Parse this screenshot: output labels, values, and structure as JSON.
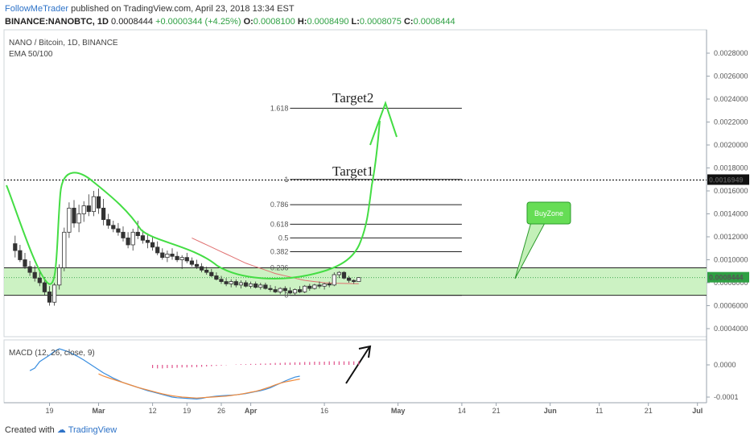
{
  "header": {
    "author": "FollowMeTrader",
    "published": "published on TradingView.com, April 23, 2018 13:34 EST"
  },
  "ohlc_line": {
    "symbol": "BINANCE:NANOBTC, 1D",
    "last": "0.0008444",
    "change": "+0.0000344 (+4.25%)",
    "o_label": "O:",
    "o": "0.0008100",
    "h_label": "H:",
    "h": "0.0008490",
    "l_label": "L:",
    "l": "0.0008075",
    "c_label": "C:",
    "c": "0.0008444"
  },
  "legend": {
    "title": "NANO / Bitcoin, 1D, BINANCE",
    "ema": "EMA 50/100",
    "macd": "MACD (12, 26, close, 9)"
  },
  "annotations": {
    "target1": "Target1",
    "target2": "Target2",
    "buyzone": "BuyZone"
  },
  "footer": {
    "created_with": "Created with",
    "brand": "TradingView"
  },
  "colors": {
    "up": "#2ea043",
    "down": "#e04848",
    "zone": "#c3f0b8",
    "drawing": "#44dd44",
    "ema": "#e07070",
    "macd": "#3b8fe0",
    "signal": "#f08a3c",
    "hist": "#e0508a",
    "accent": "#2e73c8"
  },
  "chart_data": {
    "type": "candlestick",
    "price_axis": {
      "ticks": [
        0.0004,
        0.0006,
        0.0008,
        0.001,
        0.0012,
        0.0014,
        0.0016,
        0.0018,
        0.002,
        0.0022,
        0.0024,
        0.0026,
        0.0028
      ],
      "tick_labels": [
        "0.0004000",
        "0.0006000",
        "0.0008000",
        "0.0010000",
        "0.0012000",
        "0.0014000",
        "0.0016000",
        "0.0018000",
        "0.0020000",
        "0.0022000",
        "0.0024000",
        "0.0026000",
        "0.0028000"
      ],
      "ylim": [
        0.00028,
        0.00292
      ],
      "current_price_label": "0.0008444",
      "level_label": "0.0016949",
      "level_value": 0.0016949
    },
    "time_axis": {
      "labels": [
        "19",
        "Mar",
        "12",
        "19",
        "26",
        "Apr",
        "16",
        "May",
        "14",
        "21",
        "Jun",
        "11",
        "21",
        "Jul"
      ],
      "dates": [
        "2018-02-19",
        "2018-03-01",
        "2018-03-12",
        "2018-03-19",
        "2018-03-26",
        "2018-04-01",
        "2018-04-16",
        "2018-05-01",
        "2018-05-14",
        "2018-05-21",
        "2018-06-01",
        "2018-06-11",
        "2018-06-21",
        "2018-07-01"
      ]
    },
    "candles": [
      {
        "date": "2018-02-12",
        "o": 0.00114,
        "h": 0.00121,
        "l": 0.00102,
        "c": 0.00108
      },
      {
        "date": "2018-02-13",
        "o": 0.00108,
        "h": 0.00113,
        "l": 0.00098,
        "c": 0.001
      },
      {
        "date": "2018-02-14",
        "o": 0.001,
        "h": 0.00106,
        "l": 0.00092,
        "c": 0.00094
      },
      {
        "date": "2018-02-15",
        "o": 0.00094,
        "h": 0.00099,
        "l": 0.00086,
        "c": 0.00089
      },
      {
        "date": "2018-02-16",
        "o": 0.00089,
        "h": 0.00095,
        "l": 0.00081,
        "c": 0.00084
      },
      {
        "date": "2018-02-17",
        "o": 0.00084,
        "h": 0.0009,
        "l": 0.00077,
        "c": 0.0008
      },
      {
        "date": "2018-02-18",
        "o": 0.0008,
        "h": 0.00085,
        "l": 0.00069,
        "c": 0.00072
      },
      {
        "date": "2018-02-19",
        "o": 0.00072,
        "h": 0.00077,
        "l": 0.0006,
        "c": 0.00063
      },
      {
        "date": "2018-02-20",
        "o": 0.00063,
        "h": 0.0008,
        "l": 0.0006,
        "c": 0.00078
      },
      {
        "date": "2018-02-21",
        "o": 0.00078,
        "h": 0.00096,
        "l": 0.00074,
        "c": 0.00093
      },
      {
        "date": "2018-02-22",
        "o": 0.00093,
        "h": 0.00128,
        "l": 0.0009,
        "c": 0.00124
      },
      {
        "date": "2018-02-23",
        "o": 0.00124,
        "h": 0.0015,
        "l": 0.00119,
        "c": 0.00145
      },
      {
        "date": "2018-02-24",
        "o": 0.00145,
        "h": 0.00152,
        "l": 0.00128,
        "c": 0.00132
      },
      {
        "date": "2018-02-25",
        "o": 0.00132,
        "h": 0.00148,
        "l": 0.00124,
        "c": 0.0014
      },
      {
        "date": "2018-02-26",
        "o": 0.0014,
        "h": 0.00151,
        "l": 0.00133,
        "c": 0.00147
      },
      {
        "date": "2018-02-27",
        "o": 0.00147,
        "h": 0.00157,
        "l": 0.00138,
        "c": 0.00142
      },
      {
        "date": "2018-02-28",
        "o": 0.00142,
        "h": 0.0016,
        "l": 0.00138,
        "c": 0.00155
      },
      {
        "date": "2018-03-01",
        "o": 0.00155,
        "h": 0.00162,
        "l": 0.0014,
        "c": 0.00145
      },
      {
        "date": "2018-03-02",
        "o": 0.00145,
        "h": 0.00153,
        "l": 0.0013,
        "c": 0.00135
      },
      {
        "date": "2018-03-03",
        "o": 0.00135,
        "h": 0.0014,
        "l": 0.00127,
        "c": 0.0013
      },
      {
        "date": "2018-03-04",
        "o": 0.0013,
        "h": 0.00134,
        "l": 0.00124,
        "c": 0.00127
      },
      {
        "date": "2018-03-05",
        "o": 0.00127,
        "h": 0.00132,
        "l": 0.00121,
        "c": 0.00124
      },
      {
        "date": "2018-03-06",
        "o": 0.00124,
        "h": 0.00129,
        "l": 0.00116,
        "c": 0.00119
      },
      {
        "date": "2018-03-07",
        "o": 0.00119,
        "h": 0.00124,
        "l": 0.0011,
        "c": 0.00113
      },
      {
        "date": "2018-03-08",
        "o": 0.00113,
        "h": 0.00127,
        "l": 0.00108,
        "c": 0.00124
      },
      {
        "date": "2018-03-09",
        "o": 0.00124,
        "h": 0.00134,
        "l": 0.00118,
        "c": 0.00121
      },
      {
        "date": "2018-03-10",
        "o": 0.00121,
        "h": 0.00126,
        "l": 0.00114,
        "c": 0.00117
      },
      {
        "date": "2018-03-11",
        "o": 0.00117,
        "h": 0.00123,
        "l": 0.0011,
        "c": 0.00115
      },
      {
        "date": "2018-03-12",
        "o": 0.00115,
        "h": 0.0012,
        "l": 0.00108,
        "c": 0.00111
      },
      {
        "date": "2018-03-13",
        "o": 0.00111,
        "h": 0.00116,
        "l": 0.00104,
        "c": 0.00106
      },
      {
        "date": "2018-03-14",
        "o": 0.00106,
        "h": 0.0011,
        "l": 0.001,
        "c": 0.00102
      },
      {
        "date": "2018-03-15",
        "o": 0.00102,
        "h": 0.00108,
        "l": 0.00098,
        "c": 0.00105
      },
      {
        "date": "2018-03-16",
        "o": 0.00105,
        "h": 0.0011,
        "l": 0.001,
        "c": 0.00103
      },
      {
        "date": "2018-03-17",
        "o": 0.00103,
        "h": 0.00107,
        "l": 0.00098,
        "c": 0.001
      },
      {
        "date": "2018-03-18",
        "o": 0.001,
        "h": 0.00104,
        "l": 0.00092,
        "c": 0.00102
      },
      {
        "date": "2018-03-19",
        "o": 0.00102,
        "h": 0.00106,
        "l": 0.00097,
        "c": 0.00099
      },
      {
        "date": "2018-03-20",
        "o": 0.00099,
        "h": 0.00102,
        "l": 0.00094,
        "c": 0.00096
      },
      {
        "date": "2018-03-21",
        "o": 0.00096,
        "h": 0.001,
        "l": 0.00092,
        "c": 0.00094
      },
      {
        "date": "2018-03-22",
        "o": 0.00094,
        "h": 0.00097,
        "l": 0.00089,
        "c": 0.00091
      },
      {
        "date": "2018-03-23",
        "o": 0.00091,
        "h": 0.00094,
        "l": 0.00087,
        "c": 0.00089
      },
      {
        "date": "2018-03-24",
        "o": 0.00089,
        "h": 0.00092,
        "l": 0.00085,
        "c": 0.00086
      },
      {
        "date": "2018-03-25",
        "o": 0.00086,
        "h": 0.00089,
        "l": 0.00082,
        "c": 0.00083
      },
      {
        "date": "2018-03-26",
        "o": 0.00083,
        "h": 0.00086,
        "l": 0.00079,
        "c": 0.00081
      },
      {
        "date": "2018-03-27",
        "o": 0.00081,
        "h": 0.00084,
        "l": 0.00077,
        "c": 0.00079
      },
      {
        "date": "2018-03-28",
        "o": 0.00079,
        "h": 0.00083,
        "l": 0.00076,
        "c": 0.00081
      },
      {
        "date": "2018-03-29",
        "o": 0.00081,
        "h": 0.00083,
        "l": 0.00076,
        "c": 0.00078
      },
      {
        "date": "2018-03-30",
        "o": 0.00078,
        "h": 0.00082,
        "l": 0.00075,
        "c": 0.0008
      },
      {
        "date": "2018-03-31",
        "o": 0.0008,
        "h": 0.00082,
        "l": 0.00076,
        "c": 0.00077
      },
      {
        "date": "2018-04-01",
        "o": 0.00077,
        "h": 0.00081,
        "l": 0.00075,
        "c": 0.00079
      },
      {
        "date": "2018-04-02",
        "o": 0.00079,
        "h": 0.00081,
        "l": 0.00075,
        "c": 0.00076
      },
      {
        "date": "2018-04-03",
        "o": 0.00076,
        "h": 0.0008,
        "l": 0.00074,
        "c": 0.00078
      },
      {
        "date": "2018-04-04",
        "o": 0.00078,
        "h": 0.0008,
        "l": 0.00074,
        "c": 0.00075
      },
      {
        "date": "2018-04-05",
        "o": 0.00075,
        "h": 0.00078,
        "l": 0.00072,
        "c": 0.00074
      },
      {
        "date": "2018-04-06",
        "o": 0.00074,
        "h": 0.00077,
        "l": 0.00071,
        "c": 0.00072
      },
      {
        "date": "2018-04-07",
        "o": 0.00072,
        "h": 0.00076,
        "l": 0.0007,
        "c": 0.00075
      },
      {
        "date": "2018-04-08",
        "o": 0.00075,
        "h": 0.00077,
        "l": 0.00071,
        "c": 0.00073
      },
      {
        "date": "2018-04-09",
        "o": 0.00073,
        "h": 0.00076,
        "l": 0.0007,
        "c": 0.00071
      },
      {
        "date": "2018-04-10",
        "o": 0.00071,
        "h": 0.00075,
        "l": 0.00069,
        "c": 0.00074
      },
      {
        "date": "2018-04-11",
        "o": 0.00074,
        "h": 0.00077,
        "l": 0.00071,
        "c": 0.00072
      },
      {
        "date": "2018-04-12",
        "o": 0.00072,
        "h": 0.00078,
        "l": 0.00071,
        "c": 0.00077
      },
      {
        "date": "2018-04-13",
        "o": 0.00077,
        "h": 0.00079,
        "l": 0.00073,
        "c": 0.00075
      },
      {
        "date": "2018-04-14",
        "o": 0.00075,
        "h": 0.00079,
        "l": 0.00074,
        "c": 0.00078
      },
      {
        "date": "2018-04-15",
        "o": 0.00078,
        "h": 0.00081,
        "l": 0.00075,
        "c": 0.00077
      },
      {
        "date": "2018-04-16",
        "o": 0.00077,
        "h": 0.0008,
        "l": 0.00074,
        "c": 0.00079
      },
      {
        "date": "2018-04-17",
        "o": 0.00079,
        "h": 0.00081,
        "l": 0.00076,
        "c": 0.00078
      },
      {
        "date": "2018-04-18",
        "o": 0.00078,
        "h": 0.00089,
        "l": 0.00077,
        "c": 0.00087
      },
      {
        "date": "2018-04-19",
        "o": 0.00087,
        "h": 0.0009,
        "l": 0.00084,
        "c": 0.00089
      },
      {
        "date": "2018-04-20",
        "o": 0.00089,
        "h": 0.0009,
        "l": 0.00083,
        "c": 0.00084
      },
      {
        "date": "2018-04-21",
        "o": 0.00084,
        "h": 0.00086,
        "l": 0.0008,
        "c": 0.00082
      },
      {
        "date": "2018-04-22",
        "o": 0.00082,
        "h": 0.00083,
        "l": 0.00079,
        "c": 0.00081
      },
      {
        "date": "2018-04-23",
        "o": 0.00081,
        "h": 0.000849,
        "l": 0.0008075,
        "c": 0.0008444
      }
    ],
    "ema50_start_date": "2018-03-20",
    "ema50": [
      0.00119,
      0.00117,
      0.00115,
      0.00113,
      0.00111,
      0.00109,
      0.00107,
      0.00105,
      0.00103,
      0.00101,
      0.00099,
      0.00097,
      0.000955,
      0.00094,
      0.000925,
      0.00091,
      0.000895,
      0.00088,
      0.00087,
      0.00086,
      0.00085,
      0.00084,
      0.00083,
      0.00082,
      0.000815,
      0.00081,
      0.000805,
      0.0008,
      0.000798,
      0.000796,
      0.000795,
      0.000794,
      0.000793,
      0.000792,
      0.000791
    ],
    "fibonacci": {
      "start_date": "2018-04-09",
      "end_date": "2018-05-14",
      "levels": [
        {
          "label": "1.618",
          "value": 0.00232
        },
        {
          "label": "1",
          "value": 0.0017
        },
        {
          "label": "0.786",
          "value": 0.00148
        },
        {
          "label": "0.618",
          "value": 0.00131
        },
        {
          "label": "0.5",
          "value": 0.00119
        },
        {
          "label": "0.382",
          "value": 0.00107
        },
        {
          "label": "0.236",
          "value": 0.00093
        },
        {
          "label": "0",
          "value": 0.00069
        }
      ]
    },
    "buy_zone": {
      "low": 0.00069,
      "high": 0.00093
    },
    "macd": {
      "panel_label": "MACD (12, 26, close, 9)",
      "ticks": [
        0.0,
        -0.0001
      ],
      "tick_labels": [
        "0.0000",
        "-0.0001"
      ],
      "ylim": [
        -0.000115,
        6.5e-05
      ],
      "start_date": "2018-02-15",
      "macd_line": [
        -1.8e-05,
        -1e-05,
        1e-05,
        2e-05,
        3e-05,
        4.2e-05,
        5e-05,
        4.5e-05,
        4e-05,
        3.2e-05,
        2.4e-05,
        1.5e-05,
        5e-06,
        -5e-06,
        -1.5e-05,
        -2.5e-05,
        -3.3e-05,
        -4.1e-05,
        -4.8e-05,
        -5.5e-05,
        -6e-05,
        -6.5e-05,
        -7e-05,
        -7.5e-05,
        -8e-05,
        -8.4e-05,
        -8.8e-05,
        -9.2e-05,
        -9.6e-05,
        -0.0001,
        -0.000102,
        -0.000103,
        -0.000104,
        -0.000105,
        -0.000106,
        -0.000104,
        -0.000101,
        -9.9e-05,
        -9.7e-05,
        -9.6e-05,
        -9.5e-05,
        -9.4e-05,
        -9.3e-05,
        -9.1e-05,
        -8.9e-05,
        -8.6e-05,
        -8.3e-05,
        -8e-05,
        -7.6e-05,
        -7.1e-05,
        -6.4e-05,
        -5.7e-05,
        -5e-05,
        -4.4e-05,
        -3.8e-05,
        -3.5e-05
      ],
      "signal_start_date": "2018-03-01",
      "signal_line": [
        -2.8e-05,
        -3.5e-05,
        -4e-05,
        -4.5e-05,
        -5e-05,
        -5.5e-05,
        -6e-05,
        -6.5e-05,
        -7e-05,
        -7.4e-05,
        -7.8e-05,
        -8.2e-05,
        -8.6e-05,
        -9e-05,
        -9.3e-05,
        -9.6e-05,
        -9.8e-05,
        -0.0001,
        -0.000101,
        -0.000102,
        -0.000103,
        -0.000102,
        -0.000101,
        -0.0001,
        -9.9e-05,
        -9.8e-05,
        -9.7e-05,
        -9.5e-05,
        -9.3e-05,
        -9.1e-05,
        -8.8e-05,
        -8.5e-05,
        -8.2e-05,
        -7.8e-05,
        -7.3e-05,
        -6.8e-05,
        -6.2e-05,
        -5.7e-05,
        -5.3e-05,
        -5e-05,
        -4.7e-05,
        -4.4e-05
      ],
      "hist_start_date": "2018-03-12",
      "histogram": [
        -1e-05,
        -1.1e-05,
        -1.1e-05,
        -1e-05,
        -1e-05,
        -9e-06,
        -8e-06,
        -8e-06,
        -7e-06,
        -7e-06,
        -6e-06,
        -5e-06,
        -4e-06,
        -3e-06,
        -2e-06,
        -1e-06,
        0.0,
        1e-06,
        2e-06,
        2e-06,
        3e-06,
        3e-06,
        4e-06,
        4e-06,
        5e-06,
        6e-06,
        6e-06,
        7e-06,
        7e-06,
        8e-06,
        8e-06,
        9e-06,
        9e-06,
        1e-05,
        1e-05,
        1e-05,
        1.1e-05,
        1.1e-05,
        1.1e-05,
        1.1e-05,
        1.1e-05,
        1.1e-05,
        1.1e-05
      ]
    }
  }
}
